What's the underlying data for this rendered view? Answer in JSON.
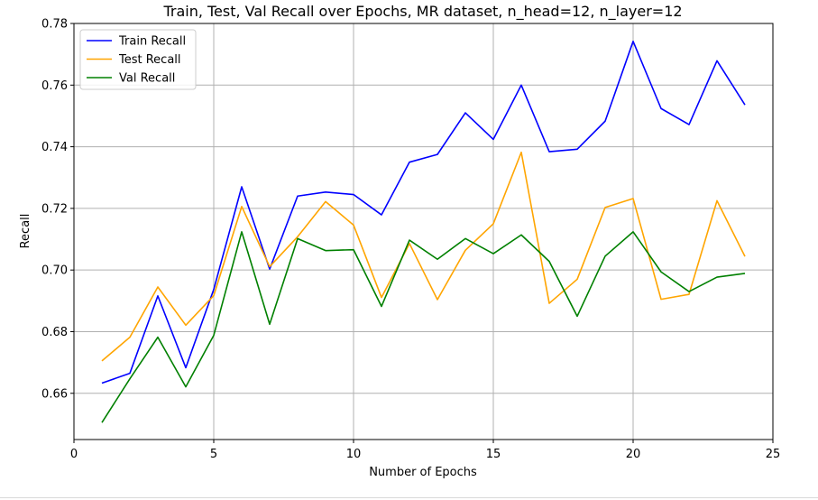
{
  "chart_data": {
    "type": "line",
    "title": "Train, Test, Val Recall over Epochs, MR dataset, n_head=12, n_layer=12",
    "xlabel": "Number of Epochs",
    "ylabel": "Recall",
    "xlim": [
      0,
      25
    ],
    "ylim": [
      0.645,
      0.78
    ],
    "xticks": [
      0,
      5,
      10,
      15,
      20,
      25
    ],
    "yticks": [
      0.66,
      0.68,
      0.7,
      0.72,
      0.74,
      0.76,
      0.78
    ],
    "ytick_labels": [
      "0.66",
      "0.68",
      "0.70",
      "0.72",
      "0.74",
      "0.76",
      "0.78"
    ],
    "grid": true,
    "legend_position": "top-left",
    "x": [
      1,
      2,
      3,
      4,
      5,
      6,
      7,
      8,
      9,
      10,
      11,
      12,
      13,
      14,
      15,
      16,
      17,
      18,
      19,
      20,
      21,
      22,
      23,
      24
    ],
    "series": [
      {
        "name": "Train Recall",
        "color": "#0000ff",
        "values": [
          0.6633,
          0.6665,
          0.6916,
          0.6683,
          0.6937,
          0.727,
          0.7003,
          0.724,
          0.7253,
          0.7245,
          0.7179,
          0.735,
          0.7375,
          0.751,
          0.7424,
          0.76,
          0.7384,
          0.7392,
          0.7483,
          0.7742,
          0.7524,
          0.7472,
          0.7679,
          0.7536
        ]
      },
      {
        "name": "Test Recall",
        "color": "#ffa500",
        "values": [
          0.6705,
          0.6782,
          0.6945,
          0.6821,
          0.6917,
          0.7206,
          0.7011,
          0.7108,
          0.7222,
          0.7146,
          0.6911,
          0.7086,
          0.6904,
          0.7064,
          0.715,
          0.7382,
          0.6892,
          0.697,
          0.7203,
          0.7232,
          0.6905,
          0.6921,
          0.7225,
          0.7044
        ]
      },
      {
        "name": "Val Recall",
        "color": "#008000",
        "values": [
          0.6505,
          0.6647,
          0.6782,
          0.6621,
          0.6788,
          0.7124,
          0.6824,
          0.7102,
          0.7063,
          0.7066,
          0.6882,
          0.7097,
          0.7035,
          0.7102,
          0.7053,
          0.7114,
          0.7028,
          0.685,
          0.7045,
          0.7124,
          0.6994,
          0.693,
          0.6977,
          0.6989
        ]
      }
    ]
  }
}
